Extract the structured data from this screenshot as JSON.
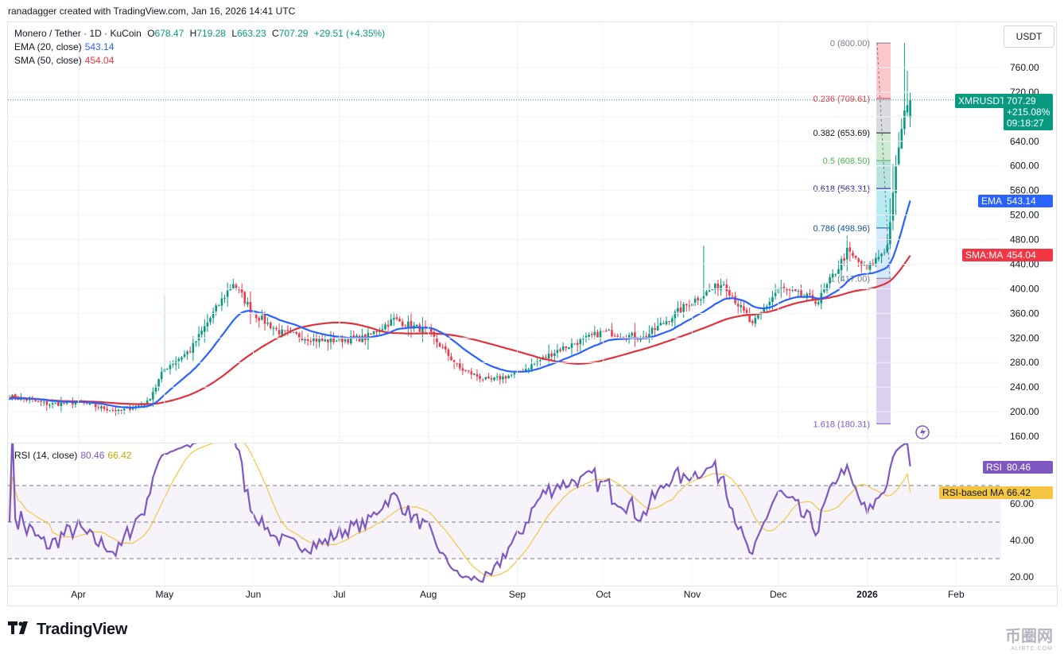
{
  "header": {
    "attribution": "ranadagger created with TradingView.com, Jan 16, 2026 14:41 UTC"
  },
  "legend": {
    "symbol": "Monero / Tether · 1D · KuCoin",
    "o_label": "O",
    "o": "678.47",
    "h_label": "H",
    "h": "719.28",
    "l_label": "L",
    "l": "663.23",
    "c_label": "C",
    "c": "707.29",
    "change": "+29.51 (+4.35%)",
    "ema_label": "EMA (20, close)",
    "ema_value": "543.14",
    "sma_label": "SMA (50, close)",
    "sma_value": "454.04",
    "rsi_label": "RSI (14, close)",
    "rsi_value": "80.46",
    "rsi_ma_value": "66.42"
  },
  "currency": "USDT",
  "price_tags": {
    "symbol": "XMRUSDT",
    "price": "707.29",
    "pct": "+215.08%",
    "countdown": "09:18:27",
    "ema_name": "EMA",
    "ema_value": "543.14",
    "sma_name": "SMA:MA",
    "sma_value": "454.04",
    "rsi_name": "RSI",
    "rsi_value": "80.46",
    "rsima_name": "RSI-based MA",
    "rsima_value": "66.42"
  },
  "footer": {
    "brand": "TradingView",
    "watermark": "币圈网",
    "watermark_sub": "ALIBTC.COM"
  },
  "colors": {
    "up": "#089981",
    "down": "#f23645",
    "ema": "#2962ff",
    "sma": "#e0323d",
    "rsi": "#7e57c2",
    "rsi_ma": "#f5c542"
  },
  "chart_data": {
    "type": "candlestick",
    "x_ticks": [
      "Apr",
      "May",
      "Jun",
      "Jul",
      "Aug",
      "Sep",
      "Oct",
      "Nov",
      "Dec",
      "2026",
      "Feb"
    ],
    "y_ticks": [
      160,
      200,
      240,
      280,
      320,
      360,
      400,
      440,
      480,
      520,
      560,
      600,
      640,
      680,
      720,
      760
    ],
    "ylim": [
      150,
      810
    ],
    "approx_close_path": [
      {
        "date": "2025-03-08",
        "close": 225
      },
      {
        "date": "2025-03-22",
        "close": 212
      },
      {
        "date": "2025-04-01",
        "close": 215
      },
      {
        "date": "2025-04-15",
        "close": 200
      },
      {
        "date": "2025-04-25",
        "close": 215
      },
      {
        "date": "2025-05-01",
        "close": 270
      },
      {
        "date": "2025-05-10",
        "close": 300
      },
      {
        "date": "2025-05-18",
        "close": 360
      },
      {
        "date": "2025-05-25",
        "close": 410
      },
      {
        "date": "2025-06-01",
        "close": 360
      },
      {
        "date": "2025-06-10",
        "close": 330
      },
      {
        "date": "2025-06-25",
        "close": 315
      },
      {
        "date": "2025-07-10",
        "close": 320
      },
      {
        "date": "2025-07-20",
        "close": 350
      },
      {
        "date": "2025-08-01",
        "close": 330
      },
      {
        "date": "2025-08-12",
        "close": 270
      },
      {
        "date": "2025-08-22",
        "close": 250
      },
      {
        "date": "2025-09-01",
        "close": 262
      },
      {
        "date": "2025-09-15",
        "close": 300
      },
      {
        "date": "2025-10-01",
        "close": 330
      },
      {
        "date": "2025-10-15",
        "close": 320
      },
      {
        "date": "2025-11-01",
        "close": 380
      },
      {
        "date": "2025-11-12",
        "close": 410
      },
      {
        "date": "2025-11-22",
        "close": 340
      },
      {
        "date": "2025-12-01",
        "close": 400
      },
      {
        "date": "2025-12-15",
        "close": 380
      },
      {
        "date": "2025-12-25",
        "close": 460
      },
      {
        "date": "2026-01-01",
        "close": 430
      },
      {
        "date": "2026-01-08",
        "close": 470
      },
      {
        "date": "2026-01-11",
        "close": 600
      },
      {
        "date": "2026-01-14",
        "close": 690
      },
      {
        "date": "2026-01-16",
        "close": 707.29
      }
    ],
    "fibonacci": [
      {
        "ratio": "0",
        "label": "0 (800.00)",
        "price": 800.0,
        "color": "#787b86"
      },
      {
        "ratio": "0.236",
        "label": "0.236 (709.61)",
        "price": 709.61,
        "color": "#f23645"
      },
      {
        "ratio": "0.382",
        "label": "0.382 (653.69)",
        "price": 653.69,
        "color": "#131722"
      },
      {
        "ratio": "0.5",
        "label": "0.5 (608.50)",
        "price": 608.5,
        "color": "#4caf50"
      },
      {
        "ratio": "0.618",
        "label": "0.618 (563.31)",
        "price": 563.31,
        "color": "#311b92"
      },
      {
        "ratio": "0.786",
        "label": "0.786 (498.96)",
        "price": 498.96,
        "color": "#0b5394"
      },
      {
        "ratio": "1",
        "label": "1 (417.00)",
        "price": 417.0,
        "color": "#787b86"
      },
      {
        "ratio": "1.618",
        "label": "1.618 (180.31)",
        "price": 180.31,
        "color": "#7e57c2"
      }
    ],
    "rsi": {
      "y_ticks": [
        20,
        40,
        60
      ],
      "ylim": [
        15,
        100
      ],
      "bands": [
        30,
        50,
        70
      ]
    }
  }
}
